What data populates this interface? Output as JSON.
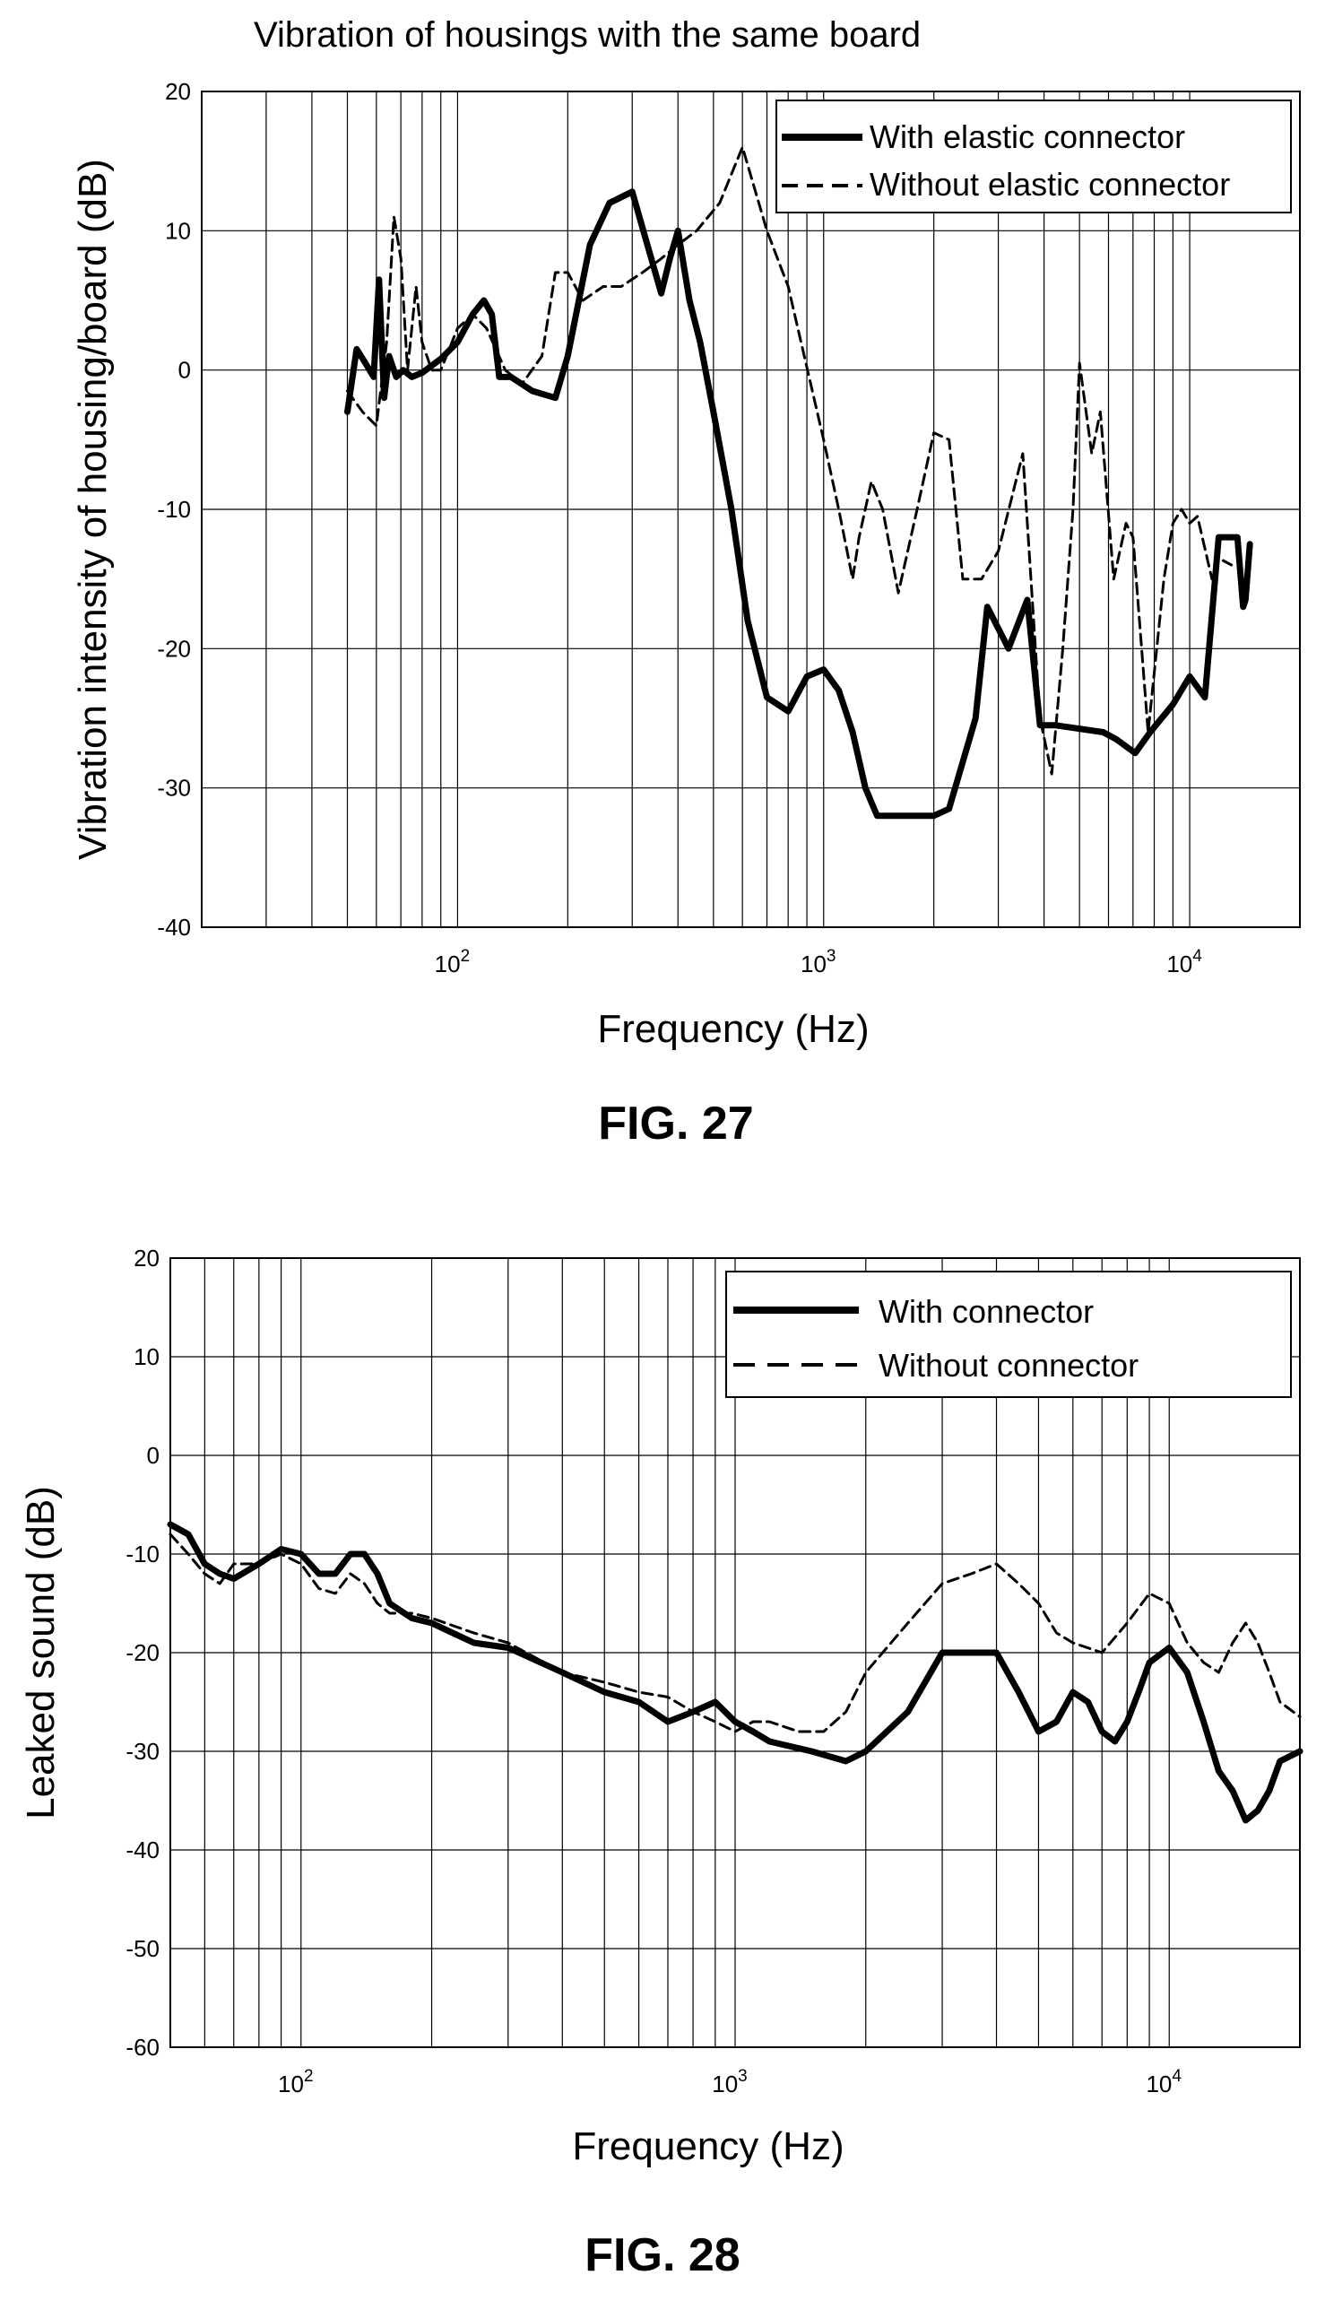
{
  "figures": [
    {
      "caption": "FIG. 27",
      "chart_data": {
        "type": "line",
        "title": "Vibration of housings with the same board",
        "xlabel": "Frequency (Hz)",
        "ylabel": "Vibration intensity of housing/board (dB)",
        "xscale": "log",
        "xlim": [
          20,
          20000
        ],
        "ylim": [
          -40,
          20
        ],
        "yticks": [
          20,
          10,
          0,
          -10,
          -20,
          -30,
          -40
        ],
        "xticks": [
          {
            "value": 100,
            "base": "10",
            "exp": "2"
          },
          {
            "value": 1000,
            "base": "10",
            "exp": "3"
          },
          {
            "value": 10000,
            "base": "10",
            "exp": "4"
          }
        ],
        "grid": true,
        "legend_position": "top-right",
        "series": [
          {
            "name": "With elastic connector",
            "style": "solid",
            "x": [
              50,
              53,
              56,
              59,
              61,
              63,
              65,
              68,
              71,
              75,
              80,
              90,
              100,
              110,
              118,
              124,
              130,
              140,
              160,
              185,
              200,
              230,
              260,
              300,
              330,
              360,
              380,
              400,
              430,
              460,
              500,
              560,
              620,
              700,
              800,
              900,
              1000,
              1100,
              1200,
              1300,
              1400,
              1600,
              2000,
              2200,
              2600,
              2800,
              3200,
              3600,
              3900,
              4300,
              5800,
              6300,
              7100,
              7800,
              9000,
              10000,
              11000,
              12000,
              13500,
              14000,
              14200,
              14600
            ],
            "y": [
              -3,
              1.5,
              0.5,
              -0.5,
              6.5,
              -2,
              1,
              -0.5,
              0,
              -0.5,
              -0.2,
              0.8,
              2,
              4,
              5,
              4,
              -0.5,
              -0.5,
              -1.5,
              -2,
              1,
              9,
              12,
              12.8,
              9,
              5.5,
              8,
              10,
              5,
              2,
              -3,
              -10,
              -18,
              -23.5,
              -24.5,
              -22,
              -21.5,
              -23,
              -26,
              -30,
              -32,
              -32,
              -32,
              -31.5,
              -25,
              -17,
              -20,
              -16.5,
              -25.5,
              -25.5,
              -26,
              -26.5,
              -27.5,
              -26,
              -24,
              -22,
              -23.5,
              -12,
              -12,
              -17,
              -16.5,
              -12.5
            ]
          },
          {
            "name": "Without elastic connector",
            "style": "dashed",
            "x": [
              50,
              55,
              60,
              64,
              67,
              70,
              73,
              77,
              80,
              85,
              90,
              100,
              110,
              120,
              135,
              150,
              170,
              185,
              200,
              220,
              250,
              280,
              320,
              360,
              400,
              450,
              520,
              600,
              700,
              800,
              1000,
              1100,
              1200,
              1250,
              1350,
              1450,
              1600,
              1800,
              2000,
              2200,
              2400,
              2700,
              3000,
              3500,
              3900,
              4200,
              4500,
              4800,
              5000,
              5400,
              5700,
              6200,
              6700,
              7000,
              7700,
              8500,
              9000,
              9500,
              10000,
              10500,
              11500,
              12000,
              13000
            ],
            "y": [
              -1.5,
              -3,
              -4,
              2,
              11,
              8,
              0,
              6,
              2,
              0,
              0,
              3,
              4,
              3,
              0,
              -1,
              1,
              7,
              7,
              5,
              6,
              6,
              7,
              8,
              9,
              10,
              12,
              16,
              10,
              6,
              -5,
              -10,
              -15,
              -12,
              -8,
              -10,
              -16,
              -10,
              -4.5,
              -5,
              -15,
              -15,
              -13,
              -6,
              -25,
              -29,
              -20,
              -10,
              0.5,
              -6,
              -3,
              -15,
              -11,
              -12,
              -26,
              -15,
              -11,
              -10,
              -11,
              -10.5,
              -15,
              -13.5,
              -14
            ]
          }
        ]
      }
    },
    {
      "caption": "FIG. 28",
      "chart_data": {
        "type": "line",
        "title": "",
        "xlabel": "Frequency (Hz)",
        "ylabel": "Leaked sound (dB)",
        "xscale": "log",
        "xlim": [
          50,
          20000
        ],
        "ylim": [
          -60,
          20
        ],
        "yticks": [
          20,
          10,
          0,
          -10,
          -20,
          -30,
          -40,
          -50,
          -60
        ],
        "xticks": [
          {
            "value": 100,
            "base": "10",
            "exp": "2"
          },
          {
            "value": 1000,
            "base": "10",
            "exp": "3"
          },
          {
            "value": 10000,
            "base": "10",
            "exp": "4"
          }
        ],
        "grid": true,
        "legend_position": "top-right",
        "series": [
          {
            "name": "With connector",
            "style": "solid",
            "x": [
              50,
              55,
              60,
              65,
              70,
              80,
              90,
              100,
              110,
              120,
              130,
              140,
              150,
              160,
              180,
              200,
              250,
              300,
              400,
              500,
              600,
              700,
              800,
              900,
              1000,
              1100,
              1200,
              1500,
              1800,
              2000,
              2500,
              3000,
              3500,
              4000,
              4500,
              5000,
              5500,
              6000,
              6500,
              7000,
              7500,
              8000,
              8500,
              9000,
              10000,
              11000,
              12000,
              13000,
              14000,
              15000,
              16000,
              17000,
              18000,
              20000
            ],
            "y": [
              -7,
              -8,
              -11,
              -12,
              -12.5,
              -11,
              -9.5,
              -10,
              -12,
              -12,
              -10,
              -10,
              -12,
              -15,
              -16.5,
              -17,
              -19,
              -19.5,
              -22,
              -24,
              -25,
              -27,
              -26,
              -25,
              -27,
              -28,
              -29,
              -30,
              -31,
              -30,
              -26,
              -20,
              -20,
              -20,
              -24,
              -28,
              -27,
              -24,
              -25,
              -28,
              -29,
              -27,
              -24,
              -21,
              -19.5,
              -22,
              -27,
              -32,
              -34,
              -37,
              -36,
              -34,
              -31,
              -30
            ]
          },
          {
            "name": "Without connector",
            "style": "dashed",
            "x": [
              50,
              55,
              60,
              65,
              70,
              80,
              90,
              100,
              110,
              120,
              130,
              140,
              150,
              160,
              180,
              200,
              250,
              300,
              400,
              500,
              600,
              700,
              800,
              900,
              1000,
              1100,
              1200,
              1400,
              1600,
              1800,
              2000,
              2500,
              3000,
              3500,
              4000,
              4500,
              5000,
              5500,
              6000,
              7000,
              8000,
              9000,
              10000,
              11000,
              12000,
              13000,
              14000,
              15000,
              16000,
              17000,
              18000,
              20000
            ],
            "y": [
              -8,
              -10,
              -12,
              -13,
              -11,
              -11,
              -10,
              -11,
              -13.5,
              -14,
              -12,
              -13,
              -15,
              -16,
              -16,
              -16.5,
              -18,
              -19,
              -22,
              -23,
              -24,
              -24.5,
              -26,
              -27,
              -28,
              -27,
              -27,
              -28,
              -28,
              -26,
              -22,
              -17,
              -13,
              -12,
              -11,
              -13,
              -15,
              -18,
              -19,
              -20,
              -17,
              -14,
              -15,
              -19,
              -21,
              -22,
              -19,
              -17,
              -19,
              -22,
              -25,
              -26.5
            ]
          }
        ]
      }
    }
  ]
}
